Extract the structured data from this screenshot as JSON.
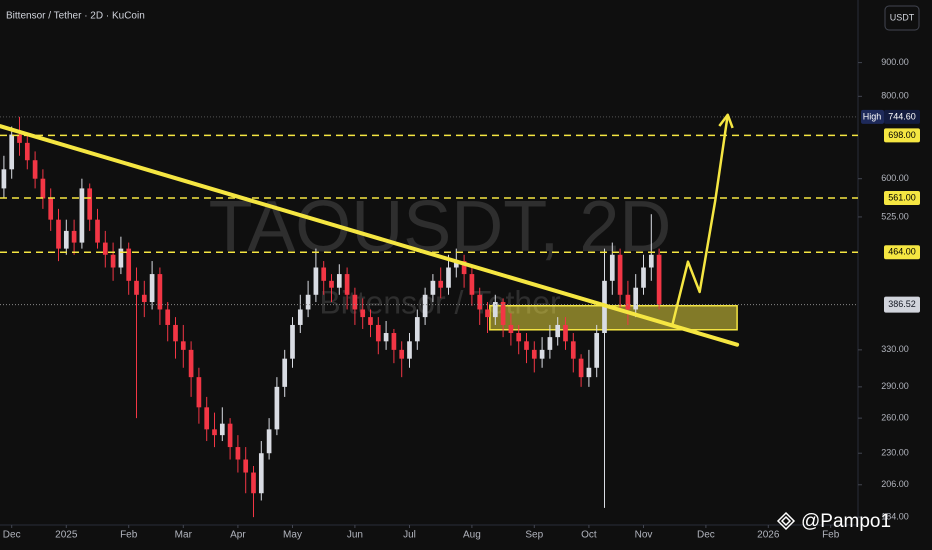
{
  "chart_data": {
    "type": "candlestick",
    "title": "Bittensor / Tether · 2D · KuCoin",
    "currency": "USDT",
    "watermark": [
      "TAOUSDT, 2D",
      "Bittensor / Tether"
    ],
    "credit": "@Pampo1",
    "log_scale": true,
    "up_color": "#d9dce3",
    "down_color": "#f23645",
    "xlim": [
      -0.5,
      109.5
    ],
    "xticks": [
      {
        "value": 1,
        "label": "Dec"
      },
      {
        "value": 8,
        "label": "2025"
      },
      {
        "value": 16,
        "label": "Feb"
      },
      {
        "value": 23,
        "label": "Mar"
      },
      {
        "value": 30,
        "label": "Apr"
      },
      {
        "value": 37,
        "label": "May"
      },
      {
        "value": 45,
        "label": "Jun"
      },
      {
        "value": 52,
        "label": "Jul"
      },
      {
        "value": 60,
        "label": "Aug"
      },
      {
        "value": 68,
        "label": "Sep"
      },
      {
        "value": 75,
        "label": "Oct"
      },
      {
        "value": 82,
        "label": "Nov"
      },
      {
        "value": 90,
        "label": "Dec"
      },
      {
        "value": 98,
        "label": "2026"
      },
      {
        "value": 106,
        "label": "Feb"
      }
    ],
    "ylim": [
      179,
      1120
    ],
    "yticks": [
      {
        "value": 900,
        "label": "900.00"
      },
      {
        "value": 800,
        "label": "800.00"
      },
      {
        "value": 600,
        "label": "600.00"
      },
      {
        "value": 525,
        "label": "525.00"
      },
      {
        "value": 330,
        "label": "330.00"
      },
      {
        "value": 290,
        "label": "290.00"
      },
      {
        "value": 260,
        "label": "260.00"
      },
      {
        "value": 230,
        "label": "230.00"
      },
      {
        "value": 206,
        "label": "206.00"
      },
      {
        "value": 184,
        "label": "184.00"
      }
    ],
    "high_marker": {
      "name": "High",
      "value": 744.6,
      "label": "744.60"
    },
    "levels": [
      {
        "value": 698,
        "label": "698.00"
      },
      {
        "value": 561,
        "label": "561.00"
      },
      {
        "value": 464,
        "label": "464.00"
      }
    ],
    "level_color": "#f5e642",
    "last_price": {
      "value": 386.52,
      "label": "386.52"
    },
    "trendline": {
      "x": [
        -0.5,
        94
      ],
      "y": [
        721,
        336
      ]
    },
    "zone": {
      "x": [
        62.3,
        94
      ],
      "y": [
        354,
        385
      ]
    },
    "arrow": {
      "x": [
        85.7,
        87.7,
        89.2,
        91.2,
        92.8
      ],
      "y": [
        360,
        449,
        404,
        556,
        750
      ]
    },
    "open": [
      580,
      620,
      700,
      680,
      640,
      600,
      560,
      520,
      470,
      500,
      480,
      580,
      520,
      480,
      460,
      440,
      470,
      420,
      400,
      390,
      430,
      380,
      360,
      340,
      330,
      300,
      270,
      250,
      245,
      255,
      235,
      225,
      215,
      200,
      230,
      250,
      290,
      320,
      360,
      380,
      400,
      440,
      420,
      410,
      430,
      400,
      380,
      370,
      360,
      340,
      350,
      330,
      320,
      340,
      370,
      400,
      420,
      410,
      440,
      450,
      430,
      400,
      380,
      370,
      390,
      360,
      350,
      340,
      330,
      320,
      330,
      345,
      360,
      340,
      320,
      300,
      310,
      350,
      420,
      460,
      400,
      380,
      410,
      440,
      460
    ],
    "high": [
      650,
      720,
      744.6,
      700,
      660,
      620,
      580,
      540,
      520,
      520,
      600,
      590,
      540,
      500,
      480,
      490,
      480,
      440,
      420,
      450,
      440,
      390,
      370,
      360,
      340,
      310,
      280,
      265,
      270,
      260,
      245,
      235,
      220,
      240,
      260,
      300,
      330,
      370,
      400,
      420,
      470,
      450,
      430,
      445,
      440,
      410,
      395,
      380,
      370,
      365,
      355,
      340,
      350,
      380,
      410,
      430,
      440,
      460,
      470,
      460,
      440,
      410,
      390,
      400,
      395,
      375,
      360,
      350,
      340,
      345,
      360,
      370,
      370,
      350,
      325,
      330,
      360,
      470,
      480,
      470,
      420,
      430,
      460,
      530,
      470
    ],
    "low": [
      560,
      600,
      650,
      620,
      580,
      540,
      500,
      450,
      460,
      460,
      470,
      500,
      470,
      440,
      420,
      430,
      400,
      260,
      370,
      380,
      360,
      340,
      320,
      310,
      280,
      255,
      240,
      235,
      240,
      225,
      215,
      200,
      184,
      195,
      225,
      245,
      280,
      310,
      350,
      370,
      390,
      400,
      390,
      400,
      380,
      360,
      355,
      345,
      325,
      330,
      315,
      300,
      310,
      330,
      360,
      390,
      395,
      400,
      425,
      410,
      385,
      360,
      350,
      360,
      345,
      335,
      325,
      315,
      305,
      310,
      320,
      335,
      330,
      305,
      290,
      290,
      300,
      190,
      400,
      380,
      360,
      370,
      400,
      420,
      380
    ],
    "close": [
      620,
      700,
      680,
      640,
      600,
      560,
      520,
      470,
      500,
      480,
      580,
      520,
      480,
      460,
      440,
      470,
      420,
      400,
      390,
      430,
      380,
      360,
      340,
      330,
      300,
      270,
      250,
      245,
      255,
      235,
      225,
      215,
      200,
      230,
      250,
      290,
      320,
      360,
      380,
      400,
      440,
      420,
      410,
      430,
      400,
      380,
      370,
      360,
      340,
      350,
      330,
      320,
      340,
      370,
      400,
      420,
      410,
      440,
      450,
      430,
      400,
      380,
      370,
      390,
      360,
      350,
      340,
      330,
      320,
      330,
      345,
      360,
      340,
      320,
      300,
      310,
      350,
      420,
      460,
      400,
      380,
      410,
      440,
      460,
      386.52
    ]
  }
}
